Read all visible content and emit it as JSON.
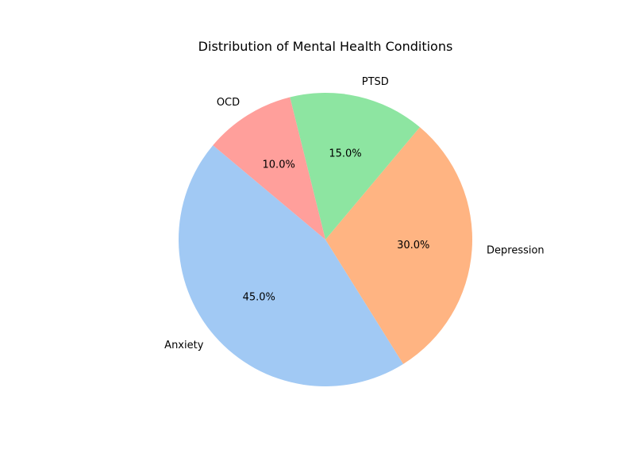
{
  "chart_data": {
    "type": "pie",
    "title": "Distribution of Mental Health Conditions",
    "categories": [
      "Anxiety",
      "Depression",
      "PTSD",
      "OCD"
    ],
    "values": [
      45,
      30,
      15,
      10
    ],
    "percent_labels": [
      "45.0%",
      "30.0%",
      "15.0%",
      "10.0%"
    ],
    "colors": [
      "#a1c9f4",
      "#ffb482",
      "#8de5a1",
      "#ff9f9b"
    ],
    "start_angle_deg": 140,
    "direction": "counterclockwise",
    "legend": "none"
  }
}
